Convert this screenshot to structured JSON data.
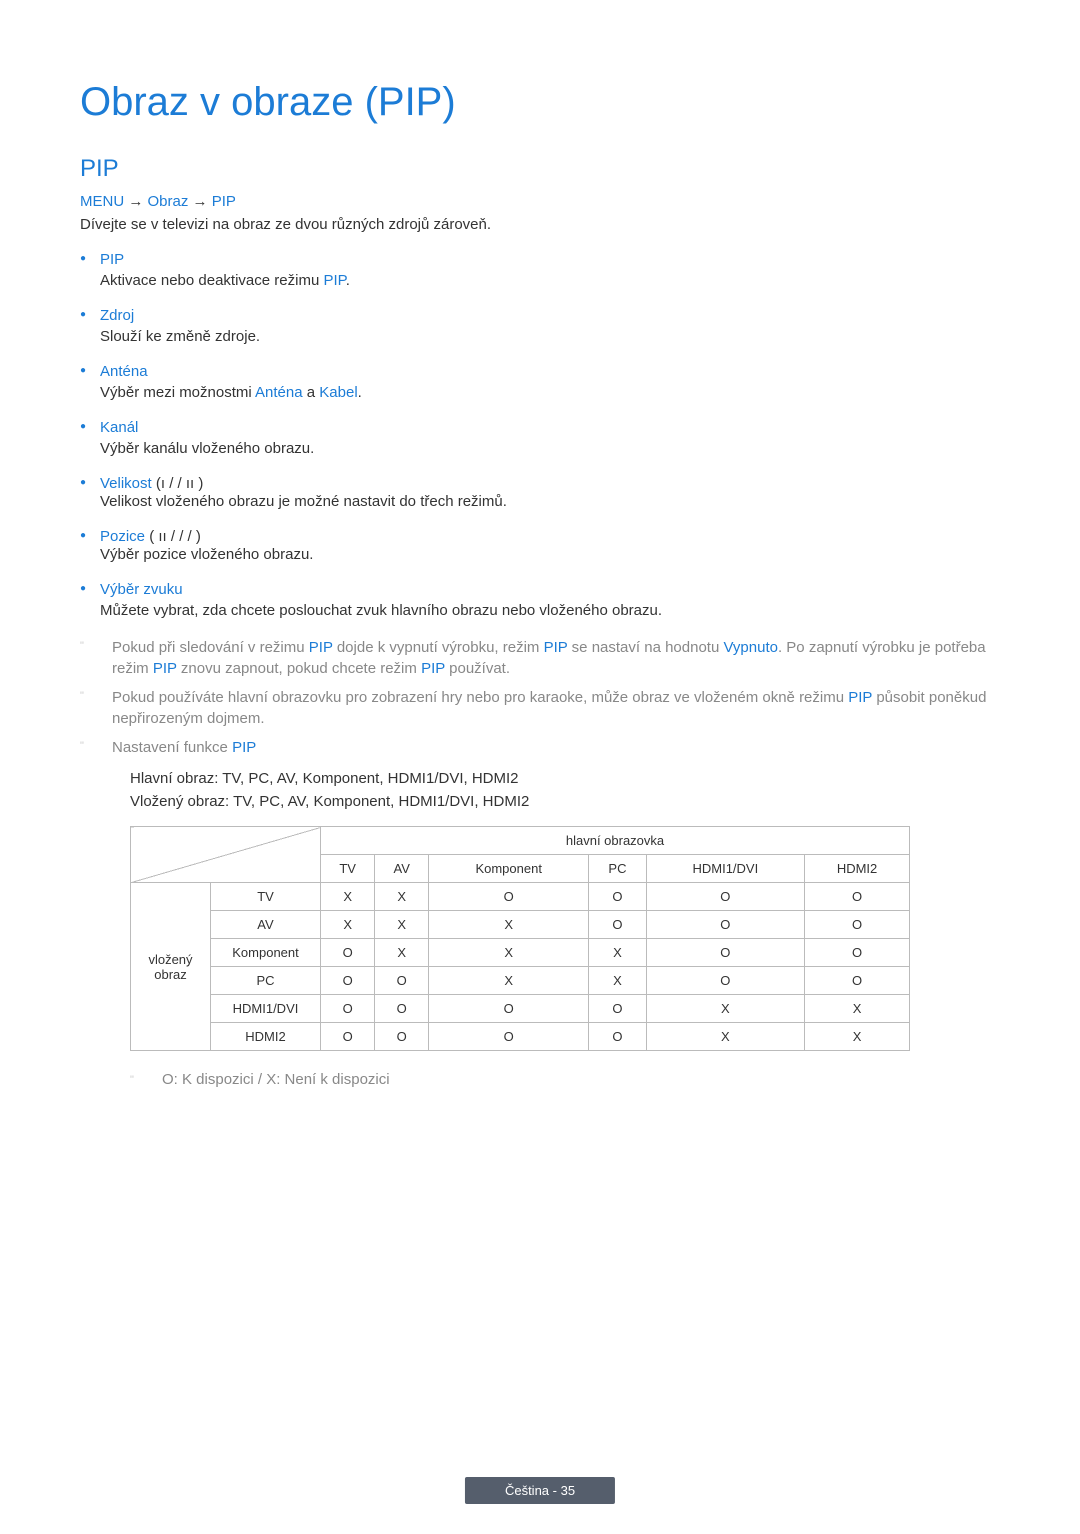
{
  "title": "Obraz v obraze (PIP)",
  "section_heading": "PIP",
  "breadcrumb": {
    "menu": "MENU",
    "arrow": "→",
    "obraz": "Obraz",
    "pip": "PIP"
  },
  "intro": "Dívejte se v televizi na obraz ze dvou různých zdrojů zároveň.",
  "items": [
    {
      "title": "PIP",
      "desc_parts": [
        "Aktivace nebo deaktivace režimu ",
        "PIP",
        "."
      ]
    },
    {
      "title": "Zdroj",
      "desc_parts": [
        "Slouží ke změně zdroje."
      ]
    },
    {
      "title": "Anténa",
      "desc_parts": [
        "Výběr mezi možnostmi ",
        "Anténa",
        " a ",
        "Kabel",
        "."
      ]
    },
    {
      "title": "Kanál",
      "desc_parts": [
        "Výběr kanálu vloženého obrazu."
      ]
    },
    {
      "title": "Velikost",
      "suffix": " (ı     /      /  ıı     )",
      "desc_parts": [
        "Velikost vloženého obrazu je možné nastavit do třech režimů."
      ]
    },
    {
      "title": "Pozice",
      "suffix": " ( ıı     /       /       /       )",
      "desc_parts": [
        "Výběr pozice vloženého obrazu."
      ]
    },
    {
      "title": "Výběr zvuku",
      "desc_parts": [
        "Můžete vybrat, zda chcete poslouchat zvuk hlavního obrazu nebo vloženého obrazu."
      ]
    }
  ],
  "notes": [
    {
      "parts": [
        "Pokud při sledování v režimu ",
        "PIP",
        " dojde k vypnutí výrobku, režim ",
        "PIP",
        " se nastaví na hodnotu ",
        "Vypnuto",
        ". Po zapnutí výrobku je potřeba režim ",
        "PIP",
        " znovu zapnout, pokud chcete režim ",
        "PIP",
        " používat."
      ]
    },
    {
      "parts": [
        "Pokud používáte hlavní obrazovku pro zobrazení hry nebo pro karaoke, může obraz ve vloženém okně režimu ",
        "PIP",
        " působit poněkud nepřirozeným dojmem."
      ]
    },
    {
      "parts": [
        "Nastavení funkce ",
        "PIP"
      ]
    }
  ],
  "sub_lines": [
    "Hlavní obraz: TV, PC, AV, Komponent, HDMI1/DVI, HDMI2",
    "Vložený obraz: TV, PC, AV, Komponent, HDMI1/DVI, HDMI2"
  ],
  "table": {
    "main_header": "hlavní obrazovka",
    "sub_header": "vložený obraz",
    "cols": [
      "TV",
      "AV",
      "Komponent",
      "PC",
      "HDMI1/DVI",
      "HDMI2"
    ],
    "rows": [
      {
        "label": "TV",
        "cells": [
          "X",
          "X",
          "O",
          "O",
          "O",
          "O"
        ]
      },
      {
        "label": "AV",
        "cells": [
          "X",
          "X",
          "X",
          "O",
          "O",
          "O"
        ]
      },
      {
        "label": "Komponent",
        "cells": [
          "O",
          "X",
          "X",
          "X",
          "O",
          "O"
        ]
      },
      {
        "label": "PC",
        "cells": [
          "O",
          "O",
          "X",
          "X",
          "O",
          "O"
        ]
      },
      {
        "label": "HDMI1/DVI",
        "cells": [
          "O",
          "O",
          "O",
          "O",
          "X",
          "X"
        ]
      },
      {
        "label": "HDMI2",
        "cells": [
          "O",
          "O",
          "O",
          "O",
          "X",
          "X"
        ]
      }
    ]
  },
  "legend": "O: K dispozici / X: Není k dispozici",
  "footer": "Čeština - 35",
  "colors": {
    "primary": "#1c7cd6",
    "text": "#333333",
    "muted": "#888888",
    "border": "#bbbbbb",
    "footer_bg": "#555e6c"
  }
}
